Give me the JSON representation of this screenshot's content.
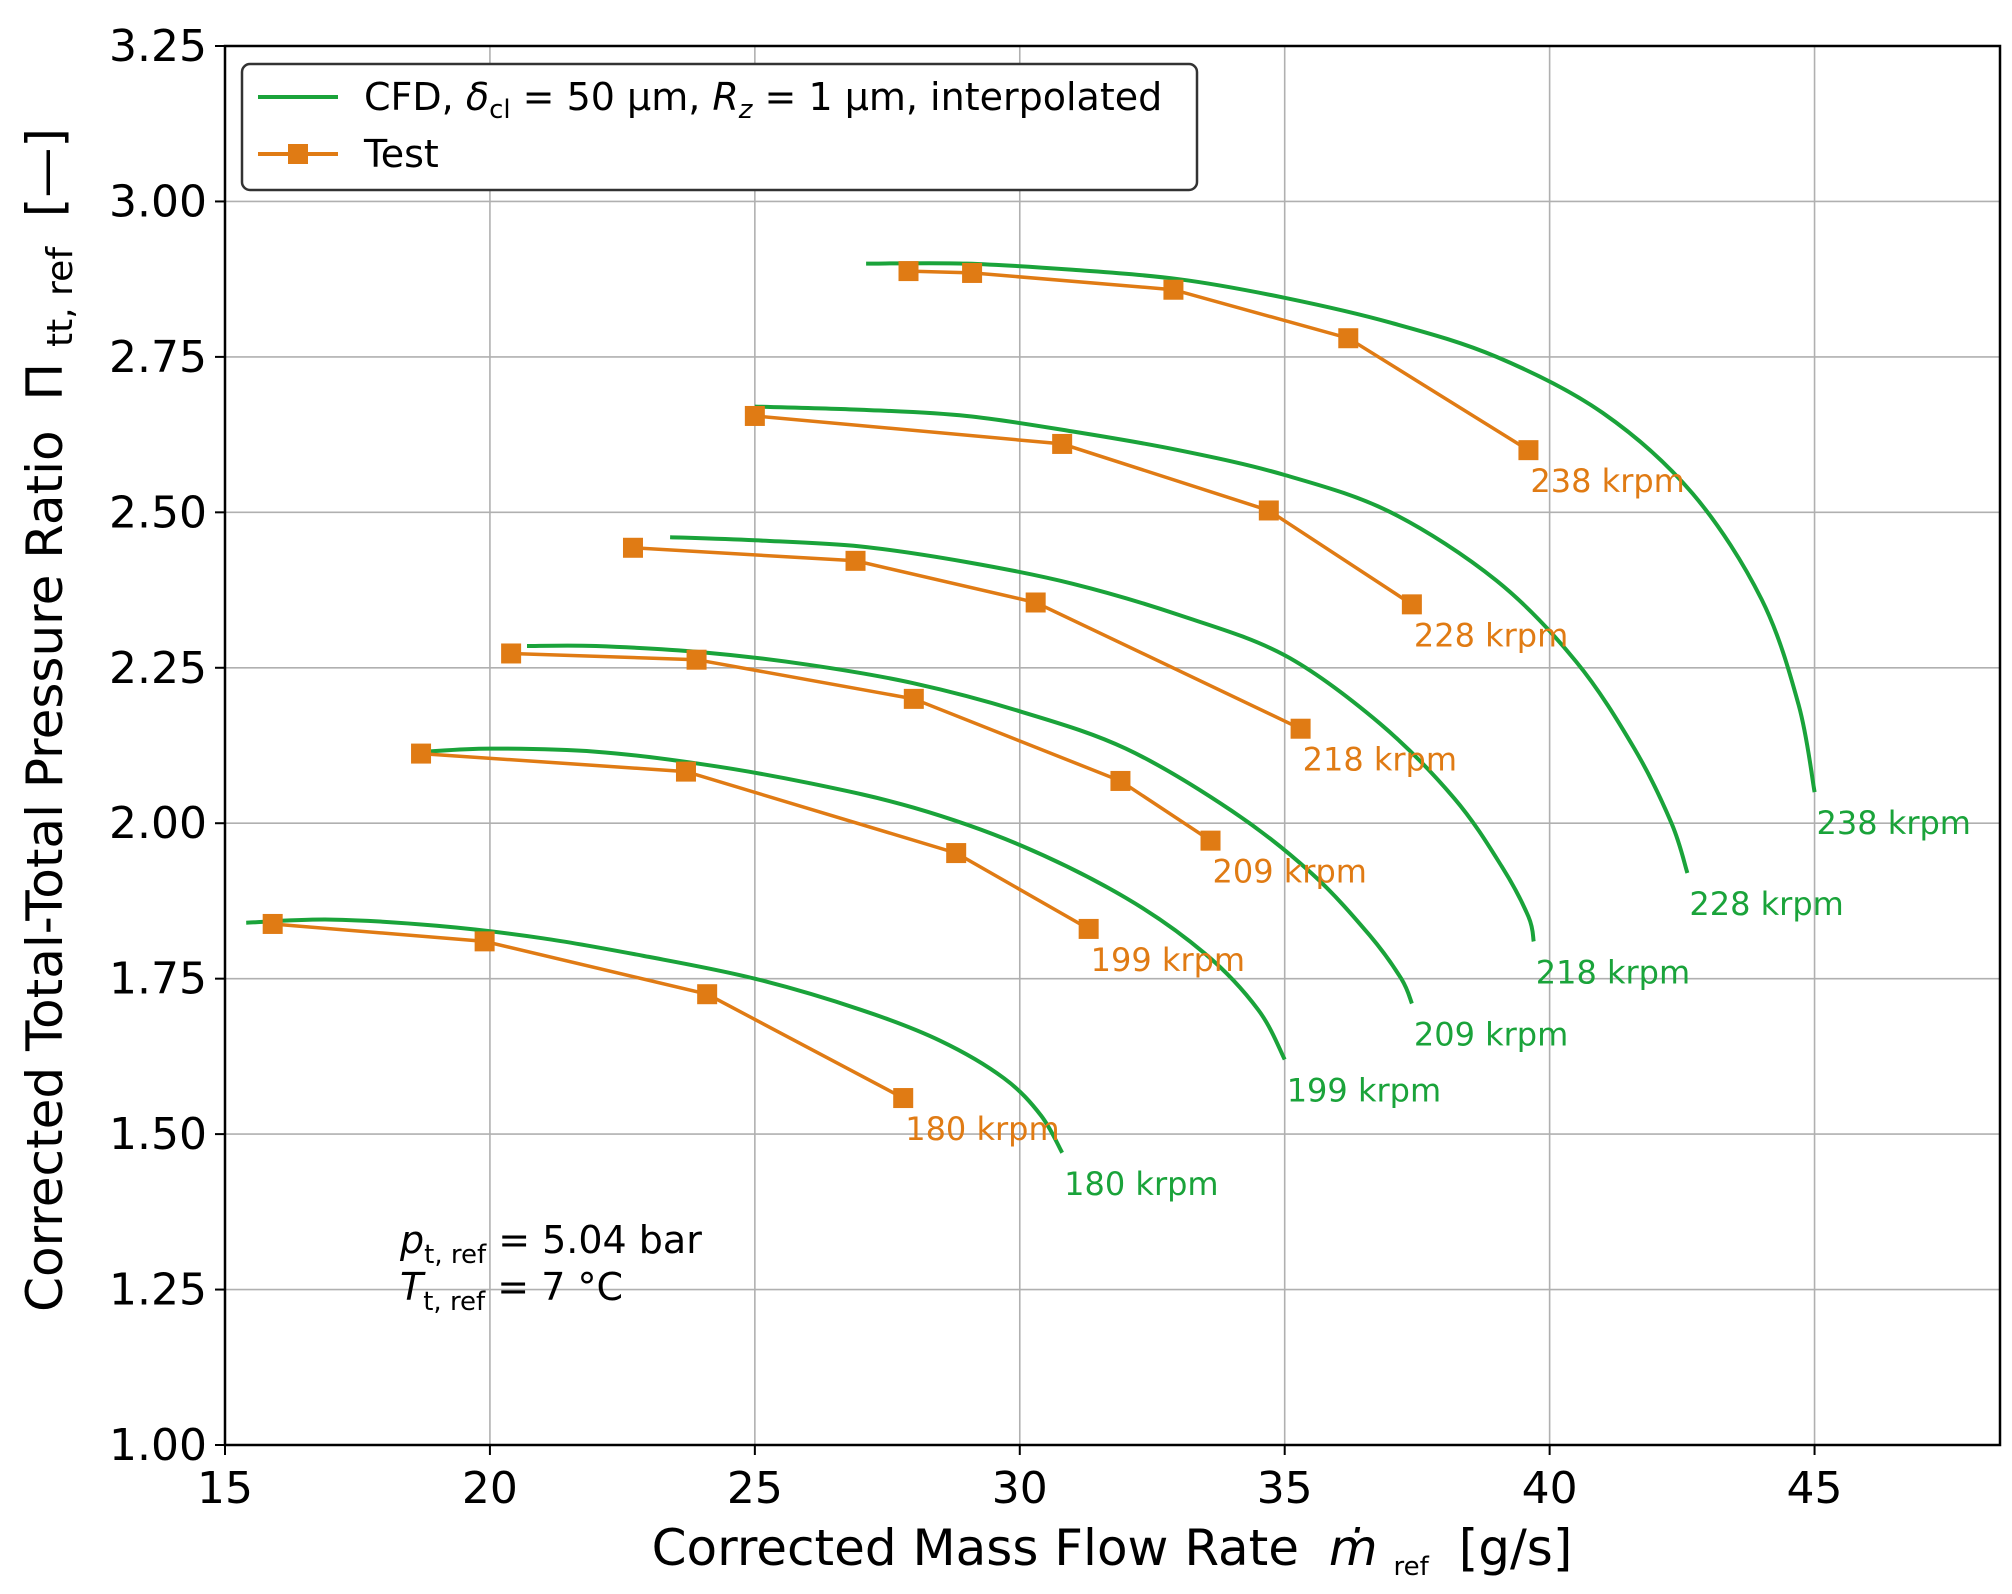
{
  "chart_data": {
    "type": "line",
    "xlabel": "Corrected Mass Flow Rate",
    "xlabel_symbol": "ṁ",
    "xlabel_sub": "ref",
    "xlabel_unit": "[g/s]",
    "ylabel": "Corrected Total-Total Pressure Ratio",
    "ylabel_symbol": "Π",
    "ylabel_sub": "tt, ref",
    "ylabel_unit": "[—]",
    "xlim": [
      15,
      48.5
    ],
    "ylim": [
      1.0,
      3.25
    ],
    "xticks": [
      15,
      20,
      25,
      30,
      35,
      40,
      45
    ],
    "yticks": [
      1.0,
      1.25,
      1.5,
      1.75,
      2.0,
      2.25,
      2.5,
      2.75,
      3.0,
      3.25
    ],
    "xtick_labels": [
      "15",
      "20",
      "25",
      "30",
      "35",
      "40",
      "45"
    ],
    "ytick_labels": [
      "1.00",
      "1.25",
      "1.50",
      "1.75",
      "2.00",
      "2.25",
      "2.50",
      "2.75",
      "3.00",
      "3.25"
    ],
    "grid": true,
    "legend_position": "top-left",
    "colors": {
      "cfd": "#1aa33a",
      "test": "#e07b14"
    },
    "legend": {
      "cfd_prefix": "CFD, ",
      "cfd_delta": "δ",
      "cfd_delta_sub": "cl",
      "cfd_mid": " = 50 μm, ",
      "cfd_r": "R",
      "cfd_r_sub": "z",
      "cfd_suffix": " = 1 μm, interpolated",
      "test": "Test"
    },
    "annotation": {
      "p_symbol": "p",
      "p_sub": "t, ref",
      "p_value": " = 5.04 bar",
      "t_symbol": "T",
      "t_sub": "t, ref",
      "t_value": " = 7 °C"
    },
    "series": [
      {
        "name": "CFD 180 krpm",
        "kind": "cfd",
        "label": "180 krpm",
        "x": [
          15.4,
          17.0,
          19.0,
          21.0,
          23.0,
          25.0,
          27.0,
          28.5,
          29.7,
          30.4,
          30.8
        ],
        "y": [
          1.84,
          1.845,
          1.835,
          1.815,
          1.785,
          1.75,
          1.7,
          1.65,
          1.59,
          1.53,
          1.47
        ]
      },
      {
        "name": "CFD 199 krpm",
        "kind": "cfd",
        "label": "199 krpm",
        "x": [
          18.8,
          20.0,
          22.0,
          24.0,
          26.0,
          28.0,
          30.0,
          32.0,
          33.5,
          34.5,
          35.0
        ],
        "y": [
          2.115,
          2.12,
          2.115,
          2.095,
          2.065,
          2.025,
          1.965,
          1.88,
          1.79,
          1.7,
          1.62
        ]
      },
      {
        "name": "CFD 209 krpm",
        "kind": "cfd",
        "label": "209 krpm",
        "x": [
          20.7,
          22.0,
          24.0,
          26.0,
          28.0,
          30.0,
          32.0,
          34.0,
          35.5,
          36.6,
          37.2,
          37.4
        ],
        "y": [
          2.285,
          2.285,
          2.275,
          2.255,
          2.225,
          2.18,
          2.12,
          2.02,
          1.92,
          1.82,
          1.75,
          1.71
        ]
      },
      {
        "name": "CFD 218 krpm",
        "kind": "cfd",
        "label": "218 krpm",
        "x": [
          23.4,
          25.0,
          27.0,
          29.0,
          31.0,
          33.0,
          35.0,
          36.8,
          38.2,
          39.1,
          39.6,
          39.7
        ],
        "y": [
          2.46,
          2.455,
          2.445,
          2.42,
          2.385,
          2.335,
          2.27,
          2.16,
          2.04,
          1.93,
          1.85,
          1.81
        ]
      },
      {
        "name": "CFD 228 krpm",
        "kind": "cfd",
        "label": "228 krpm",
        "x": [
          25.0,
          27.0,
          29.0,
          31.0,
          33.0,
          35.0,
          37.0,
          39.0,
          40.5,
          41.6,
          42.3,
          42.6
        ],
        "y": [
          2.67,
          2.665,
          2.655,
          2.63,
          2.6,
          2.56,
          2.5,
          2.39,
          2.26,
          2.12,
          2.0,
          1.92
        ]
      },
      {
        "name": "CFD 238 krpm",
        "kind": "cfd",
        "label": "238 krpm",
        "x": [
          27.1,
          29.0,
          31.0,
          33.0,
          35.0,
          37.0,
          39.0,
          41.0,
          42.7,
          44.0,
          44.7,
          45.0
        ],
        "y": [
          2.9,
          2.9,
          2.89,
          2.875,
          2.845,
          2.805,
          2.75,
          2.66,
          2.53,
          2.36,
          2.19,
          2.05
        ]
      },
      {
        "name": "Test 180 krpm",
        "kind": "test",
        "label": "180 krpm",
        "x": [
          15.9,
          19.9,
          24.1,
          27.8
        ],
        "y": [
          1.838,
          1.81,
          1.725,
          1.558
        ]
      },
      {
        "name": "Test 199 krpm",
        "kind": "test",
        "label": "199 krpm",
        "x": [
          18.7,
          23.7,
          28.8,
          31.3
        ],
        "y": [
          2.112,
          2.083,
          1.952,
          1.83
        ]
      },
      {
        "name": "Test 209 krpm",
        "kind": "test",
        "label": "209 krpm",
        "x": [
          20.4,
          23.9,
          28.0,
          31.9,
          33.6
        ],
        "y": [
          2.273,
          2.263,
          2.2,
          2.068,
          1.972
        ]
      },
      {
        "name": "Test 218 krpm",
        "kind": "test",
        "label": "218 krpm",
        "x": [
          22.7,
          26.9,
          30.3,
          35.3
        ],
        "y": [
          2.443,
          2.422,
          2.355,
          2.152
        ]
      },
      {
        "name": "Test 228 krpm",
        "kind": "test",
        "label": "228 krpm",
        "x": [
          25.0,
          30.8,
          34.7,
          37.4
        ],
        "y": [
          2.655,
          2.61,
          2.503,
          2.352
        ]
      },
      {
        "name": "Test 238 krpm",
        "kind": "test",
        "label": "238 krpm",
        "x": [
          27.9,
          29.1,
          32.9,
          36.2,
          39.6
        ],
        "y": [
          2.888,
          2.885,
          2.858,
          2.78,
          2.6
        ]
      }
    ]
  }
}
